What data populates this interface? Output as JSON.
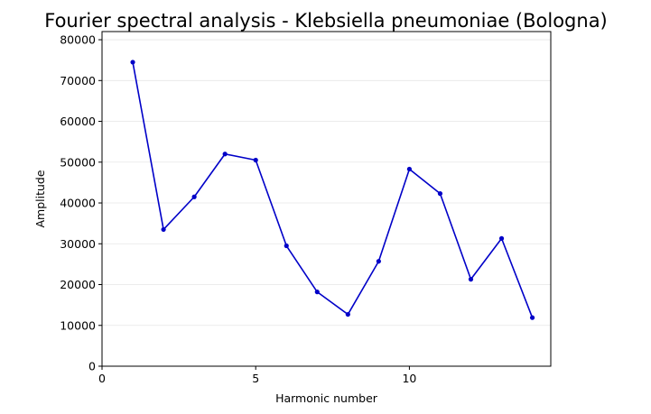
{
  "chart_data": {
    "type": "line",
    "title": "Fourier spectral analysis - Klebsiella pneumoniae (Bologna)",
    "xlabel": "Harmonic number",
    "ylabel": "Amplitude",
    "xlim": [
      0,
      14.6
    ],
    "ylim": [
      0,
      82000
    ],
    "xticks": [
      0,
      5,
      10
    ],
    "yticks": [
      0,
      10000,
      20000,
      30000,
      40000,
      50000,
      60000,
      70000,
      80000
    ],
    "grid": "horizontal",
    "color": "#0000c8",
    "series": [
      {
        "x": [
          1,
          2,
          3,
          4,
          5,
          6,
          7,
          8,
          9,
          10,
          11,
          12,
          13,
          14
        ],
        "values": [
          74500,
          33500,
          41500,
          52000,
          50500,
          29500,
          18200,
          12700,
          25700,
          48300,
          42300,
          21300,
          31300,
          11900
        ]
      }
    ]
  }
}
